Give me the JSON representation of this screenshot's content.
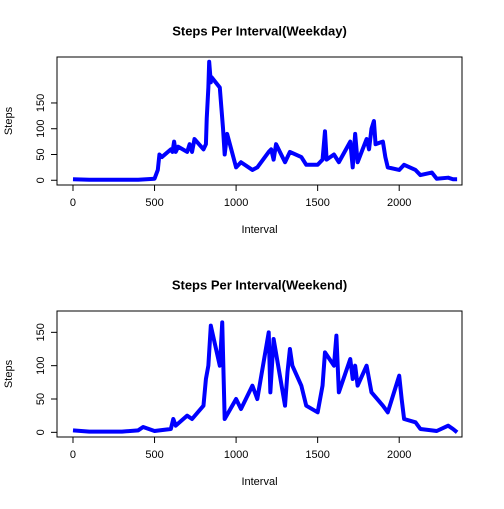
{
  "chart_data": [
    {
      "type": "line",
      "title": "Steps Per Interval(Weekday)",
      "xlabel": "Interval",
      "ylabel": "Steps",
      "color": "#0000ff",
      "x": [
        0,
        100,
        200,
        300,
        400,
        500,
        520,
        530,
        545,
        600,
        610,
        620,
        630,
        645,
        700,
        715,
        730,
        745,
        800,
        815,
        820,
        830,
        835,
        845,
        850,
        900,
        910,
        920,
        930,
        945,
        1000,
        1030,
        1100,
        1130,
        1200,
        1215,
        1230,
        1245,
        1300,
        1330,
        1400,
        1430,
        1500,
        1530,
        1545,
        1555,
        1600,
        1630,
        1700,
        1715,
        1730,
        1745,
        1800,
        1815,
        1830,
        1845,
        1855,
        1900,
        1915,
        1930,
        2000,
        2030,
        2100,
        2130,
        2200,
        2230,
        2300,
        2330,
        2355
      ],
      "values": [
        2,
        1,
        1,
        1,
        1,
        3,
        20,
        50,
        45,
        60,
        55,
        75,
        55,
        65,
        55,
        70,
        55,
        80,
        60,
        70,
        120,
        180,
        230,
        190,
        200,
        180,
        140,
        100,
        50,
        90,
        25,
        35,
        20,
        25,
        55,
        60,
        40,
        70,
        35,
        55,
        45,
        30,
        30,
        40,
        95,
        40,
        50,
        35,
        75,
        25,
        90,
        35,
        80,
        60,
        100,
        115,
        70,
        75,
        45,
        25,
        20,
        30,
        20,
        10,
        15,
        3,
        5,
        2,
        2
      ],
      "xlim": [
        -98,
        2385
      ],
      "ylim": [
        -9.2,
        239.2
      ],
      "xticks": [
        0,
        500,
        1000,
        1500,
        2000
      ],
      "yticks": [
        0,
        50,
        100,
        150
      ]
    },
    {
      "type": "line",
      "title": "Steps Per Interval(Weekend)",
      "xlabel": "Interval",
      "ylabel": "Steps",
      "color": "#0000ff",
      "x": [
        0,
        100,
        200,
        300,
        400,
        430,
        500,
        530,
        600,
        615,
        630,
        700,
        730,
        800,
        815,
        830,
        845,
        900,
        905,
        915,
        930,
        1000,
        1030,
        1100,
        1130,
        1200,
        1210,
        1230,
        1300,
        1315,
        1330,
        1345,
        1400,
        1430,
        1500,
        1530,
        1545,
        1600,
        1615,
        1630,
        1700,
        1715,
        1730,
        1745,
        1800,
        1830,
        1900,
        1930,
        2000,
        2015,
        2030,
        2100,
        2130,
        2200,
        2230,
        2300,
        2330,
        2355
      ],
      "values": [
        3,
        1,
        1,
        1,
        3,
        8,
        2,
        3,
        5,
        20,
        10,
        25,
        20,
        40,
        80,
        100,
        160,
        100,
        120,
        165,
        20,
        50,
        35,
        70,
        50,
        150,
        60,
        140,
        40,
        90,
        125,
        100,
        70,
        40,
        30,
        70,
        120,
        100,
        145,
        60,
        110,
        80,
        100,
        70,
        100,
        60,
        40,
        30,
        85,
        50,
        20,
        15,
        5,
        3,
        2,
        10,
        5,
        0
      ],
      "xlim": [
        -98,
        2385
      ],
      "ylim": [
        -7,
        182
      ],
      "xticks": [
        0,
        500,
        1000,
        1500,
        2000
      ],
      "yticks": [
        0,
        50,
        100,
        150
      ]
    }
  ]
}
